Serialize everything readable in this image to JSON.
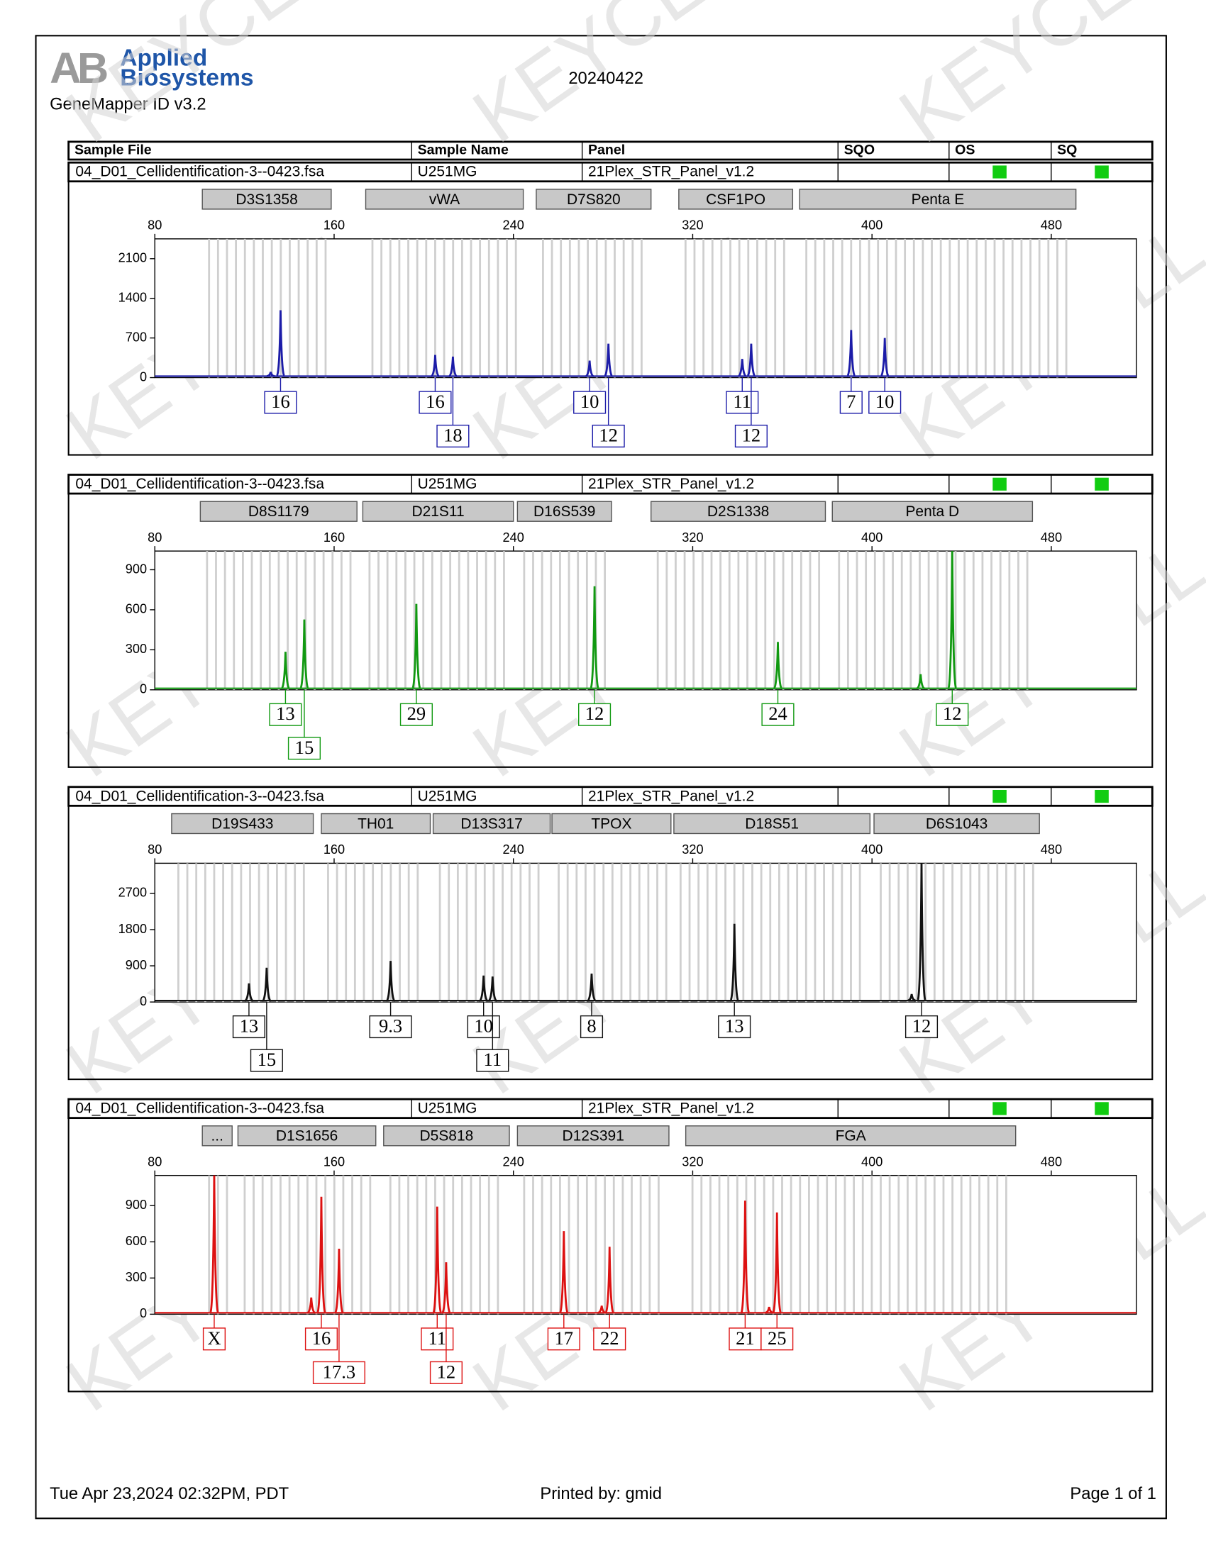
{
  "header": {
    "logo_mark": "AB",
    "logo_top": "Applied",
    "logo_bottom": "Biosystems",
    "software": "GeneMapper ID v3.2",
    "run_date": "20240422"
  },
  "columns": [
    "Sample File",
    "Sample Name",
    "Panel",
    "SQO",
    "OS",
    "SQ"
  ],
  "panels": [
    {
      "sample_file": "04_D01_Cellidentification-3--0423.fsa",
      "sample_name": "U251MG",
      "panel": "21Plex_STR_Panel_v1.2",
      "os_color": "#11cc11",
      "sq_color": "#11cc11",
      "markers": [
        {
          "name": "D3S1358",
          "start": 101.2,
          "end": 158.7
        },
        {
          "name": "vWA",
          "start": 174.1,
          "end": 244.4
        },
        {
          "name": "D7S820",
          "start": 250.2,
          "end": 301.4
        },
        {
          "name": "CSF1PO",
          "start": 313.8,
          "end": 364.6
        },
        {
          "name": "Penta E",
          "start": 367.7,
          "end": 491
        }
      ],
      "chart_data": {
        "type": "line",
        "color": "#1c1ca8",
        "xlim": [
          80,
          518
        ],
        "xticks": [
          80,
          160,
          240,
          320,
          400,
          480
        ],
        "ylim": [
          0,
          2450
        ],
        "yticks": [
          0,
          700,
          1400,
          2100
        ],
        "x": [
          131.7,
          136.1,
          205.1,
          213.0,
          274.0,
          282.4,
          342.1,
          346.1,
          390.7,
          405.7
        ],
        "values": [
          100,
          1190,
          400,
          370,
          300,
          600,
          330,
          600,
          840,
          700
        ],
        "alleles": [
          null,
          "16",
          "16",
          "18",
          "10",
          "12",
          "11",
          "12",
          "7",
          "10"
        ]
      }
    },
    {
      "sample_file": "04_D01_Cellidentification-3--0423.fsa",
      "sample_name": "U251MG",
      "panel": "21Plex_STR_Panel_v1.2",
      "os_color": "#11cc11",
      "sq_color": "#11cc11",
      "markers": [
        {
          "name": "D8S1179",
          "start": 100.3,
          "end": 170.2
        },
        {
          "name": "D21S11",
          "start": 172.8,
          "end": 240
        },
        {
          "name": "D16S539",
          "start": 241.8,
          "end": 283.8
        },
        {
          "name": "D2S1338",
          "start": 301.4,
          "end": 379.2
        },
        {
          "name": "Penta D",
          "start": 382.3,
          "end": 471.6
        }
      ],
      "chart_data": {
        "type": "line",
        "color": "#119911",
        "xlim": [
          80,
          518
        ],
        "xticks": [
          80,
          160,
          240,
          320,
          400,
          480
        ],
        "ylim": [
          0,
          1040
        ],
        "yticks": [
          0,
          300,
          600,
          900
        ],
        "x": [
          138.3,
          146.7,
          196.7,
          276.2,
          358.0,
          421.7,
          435.8
        ],
        "values": [
          285,
          527,
          644,
          776,
          359,
          117,
          1080
        ],
        "alleles": [
          "13",
          "15",
          "29",
          "12",
          "24",
          null,
          "12"
        ]
      }
    },
    {
      "sample_file": "04_D01_Cellidentification-3--0423.fsa",
      "sample_name": "U251MG",
      "panel": "21Plex_STR_Panel_v1.2",
      "os_color": "#11cc11",
      "sq_color": "#11cc11",
      "markers": [
        {
          "name": "D19S433",
          "start": 87.5,
          "end": 150.7
        },
        {
          "name": "TH01",
          "start": 154.3,
          "end": 202.9
        },
        {
          "name": "D13S317",
          "start": 204.2,
          "end": 256.4
        },
        {
          "name": "TPOX",
          "start": 257.2,
          "end": 310.3
        },
        {
          "name": "D18S51",
          "start": 311.6,
          "end": 399.1
        },
        {
          "name": "D6S1043",
          "start": 400.9,
          "end": 474.7
        }
      ],
      "chart_data": {
        "type": "line",
        "color": "#111111",
        "xlim": [
          80,
          518
        ],
        "xticks": [
          80,
          160,
          240,
          320,
          400,
          480
        ],
        "ylim": [
          0,
          3450
        ],
        "yticks": [
          0,
          900,
          1800,
          2700
        ],
        "x": [
          122.0,
          129.9,
          185.2,
          226.7,
          230.7,
          274.9,
          338.6,
          417.7,
          422.1
        ],
        "values": [
          462,
          851,
          1022,
          657,
          632,
          705,
          1946,
          195,
          3500
        ],
        "alleles": [
          "13",
          "15",
          "9.3",
          "10",
          "11",
          "8",
          "13",
          null,
          "12"
        ]
      }
    },
    {
      "sample_file": "04_D01_Cellidentification-3--0423.fsa",
      "sample_name": "U251MG",
      "panel": "21Plex_STR_Panel_v1.2",
      "os_color": "#11cc11",
      "sq_color": "#11cc11",
      "markers": [
        {
          "name": "...",
          "start": 101.2,
          "end": 114.5
        },
        {
          "name": "D1S1656",
          "start": 117.1,
          "end": 178.6
        },
        {
          "name": "D5S818",
          "start": 182.1,
          "end": 238.2
        },
        {
          "name": "D12S391",
          "start": 241.8,
          "end": 309.4
        },
        {
          "name": "FGA",
          "start": 316.9,
          "end": 464.1
        }
      ],
      "chart_data": {
        "type": "line",
        "color": "#dd1111",
        "xlim": [
          80,
          518
        ],
        "xticks": [
          80,
          160,
          240,
          320,
          400,
          480
        ],
        "ylim": [
          0,
          1150
        ],
        "yticks": [
          0,
          300,
          600,
          900
        ],
        "x": [
          106.5,
          149.8,
          154.3,
          162.2,
          206.0,
          210.0,
          262.5,
          279.4,
          282.9,
          343.4,
          354.1,
          357.6
        ],
        "values": [
          1180,
          138,
          973,
          543,
          892,
          430,
          689,
          70,
          559,
          941,
          60,
          843
        ],
        "alleles": [
          "X",
          null,
          "16",
          "17.3",
          "11",
          "12",
          "17",
          null,
          "22",
          "21",
          null,
          "25"
        ]
      }
    }
  ],
  "footer": {
    "printed_on": "Tue Apr 23,2024 02:32PM, PDT",
    "printed_by": "Printed by: gmid",
    "page": "Page 1 of 1"
  },
  "watermark": "KEYCELL"
}
